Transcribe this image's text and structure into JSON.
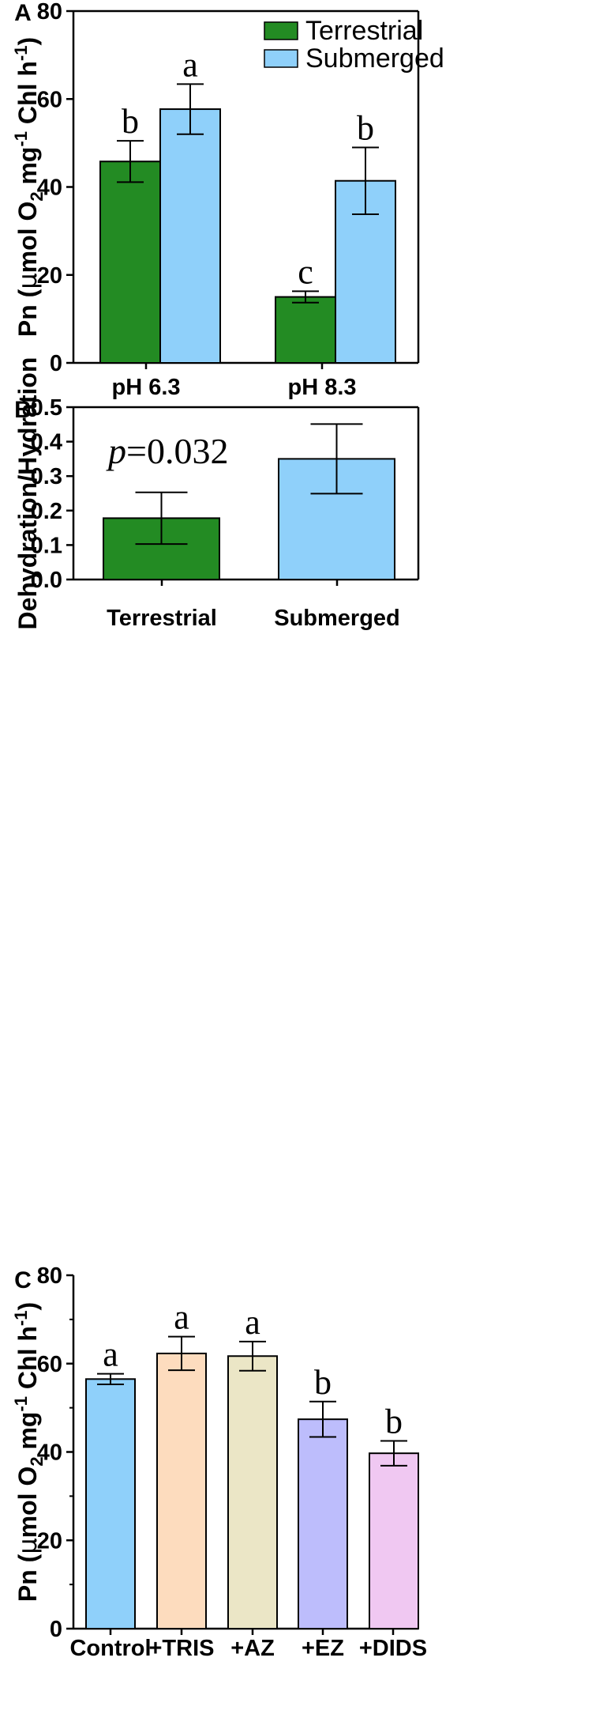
{
  "colors": {
    "terrestrial": "#238b23",
    "submerged": "#8fd0fa",
    "control": "#8fd0fa",
    "tris": "#fddcbe",
    "az": "#ebe6c6",
    "ez": "#bdbdfc",
    "dids": "#f0c8f2"
  },
  "chart_data": [
    {
      "type": "bar",
      "panel": "A",
      "categories": [
        "pH 6.3",
        "pH 8.3"
      ],
      "series": [
        {
          "name": "Terrestrial",
          "color_key": "terrestrial",
          "values": [
            45.8,
            15.0
          ],
          "errors": [
            4.7,
            1.3
          ],
          "letters": [
            "b",
            "c"
          ]
        },
        {
          "name": "Submerged",
          "color_key": "submerged",
          "values": [
            57.7,
            41.4
          ],
          "errors": [
            5.7,
            7.6
          ],
          "letters": [
            "a",
            "b"
          ]
        }
      ],
      "ylabel_parts": [
        "Pn (",
        "μ",
        "mol O",
        "2",
        " mg",
        "-1",
        " Chl h",
        "-1",
        ")"
      ],
      "ylim": [
        0,
        80
      ],
      "yticks": [
        "0",
        "20",
        "40",
        "60",
        "80"
      ],
      "legend": [
        "Terrestrial",
        "Submerged"
      ],
      "legend_position": "top-right"
    },
    {
      "type": "bar",
      "panel": "B",
      "categories": [
        "Terrestrial",
        "Submerged"
      ],
      "values": [
        0.178,
        0.35
      ],
      "errors": [
        0.075,
        0.101
      ],
      "color_keys": [
        "terrestrial",
        "submerged"
      ],
      "ylabel": "Dehydration/Hydration",
      "ylim": [
        0,
        0.5
      ],
      "yticks": [
        "0.0",
        "0.1",
        "0.2",
        "0.3",
        "0.4",
        "0.5"
      ],
      "annotation": {
        "italic": "p",
        "rest": "=0.032"
      }
    },
    {
      "type": "bar",
      "panel": "C",
      "categories": [
        "Control",
        "+TRIS",
        "+AZ",
        "+EZ",
        "+DIDS"
      ],
      "values": [
        56.5,
        62.3,
        61.7,
        47.4,
        39.7
      ],
      "errors": [
        1.2,
        3.8,
        3.3,
        4.0,
        2.8
      ],
      "letters": [
        "a",
        "a",
        "a",
        "b",
        "b"
      ],
      "color_keys": [
        "control",
        "tris",
        "az",
        "ez",
        "dids"
      ],
      "ylabel_parts": [
        "Pn (",
        "μ",
        "mol O",
        "2",
        " mg",
        "-1",
        " Chl h",
        "-1",
        ")"
      ],
      "ylim": [
        0,
        80
      ],
      "yticks": [
        "0",
        "20",
        "40",
        "60",
        "80"
      ]
    }
  ]
}
